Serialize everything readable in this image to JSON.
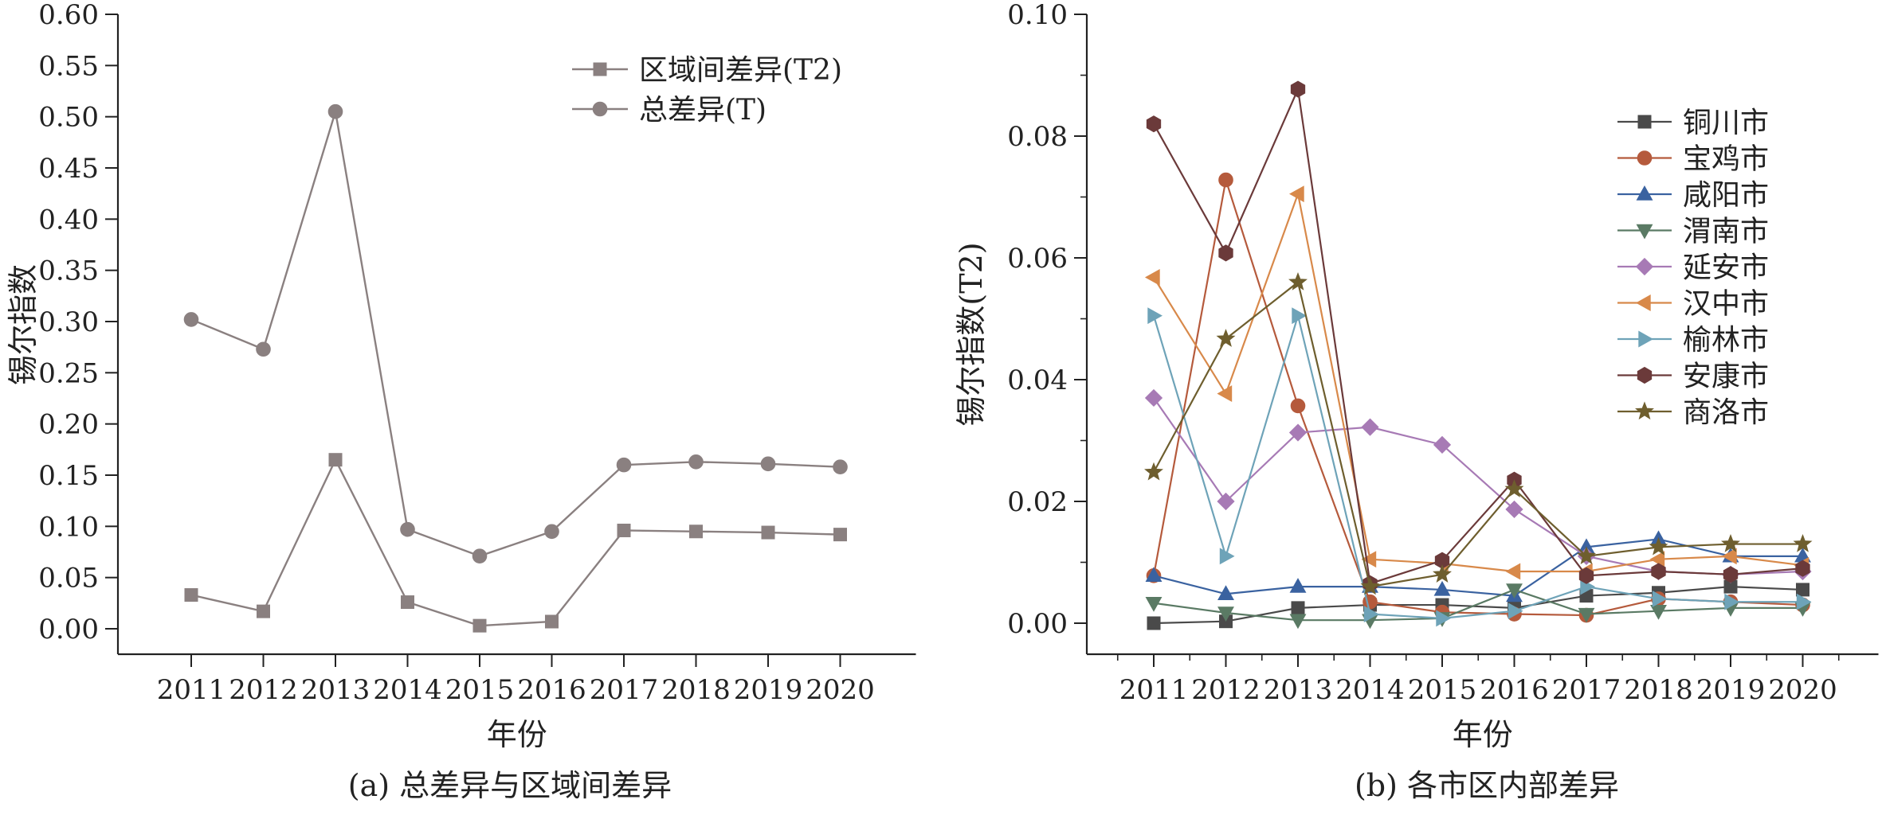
{
  "chart_data": [
    {
      "type": "line",
      "caption": "(a) 总差异与区域间差异",
      "xlabel": "年份",
      "ylabel": "锡尔指数",
      "categories": [
        "2011",
        "2012",
        "2013",
        "2014",
        "2015",
        "2016",
        "2017",
        "2018",
        "2019",
        "2020"
      ],
      "ylim": [
        0,
        0.6
      ],
      "yticks": [
        "0.00",
        "0.05",
        "0.10",
        "0.15",
        "0.20",
        "0.25",
        "0.30",
        "0.35",
        "0.40",
        "0.45",
        "0.50",
        "0.55",
        "0.60"
      ],
      "legend_position": "top-right",
      "series": [
        {
          "name": "区域间差异(T2)",
          "marker": "square",
          "color": "#8a8080",
          "values": [
            0.033,
            0.017,
            0.165,
            0.026,
            0.003,
            0.007,
            0.096,
            0.095,
            0.094,
            0.092
          ]
        },
        {
          "name": "总差异(T)",
          "marker": "circle",
          "color": "#8a8080",
          "values": [
            0.302,
            0.273,
            0.505,
            0.097,
            0.071,
            0.095,
            0.16,
            0.163,
            0.161,
            0.158
          ]
        }
      ]
    },
    {
      "type": "line",
      "caption": "(b) 各市区内部差异",
      "xlabel": "年份",
      "ylabel": "锡尔指数(T2)",
      "categories": [
        "2011",
        "2012",
        "2013",
        "2014",
        "2015",
        "2016",
        "2017",
        "2018",
        "2019",
        "2020"
      ],
      "ylim": [
        0,
        0.1
      ],
      "yticks": [
        "0.00",
        "0.02",
        "0.04",
        "0.06",
        "0.08",
        "0.10"
      ],
      "legend_position": "top-right",
      "series": [
        {
          "name": "铜川市",
          "marker": "square",
          "color": "#4a4a4a",
          "values": [
            0.0,
            0.0003,
            0.0025,
            0.003,
            0.003,
            0.0025,
            0.0045,
            0.005,
            0.006,
            0.0055
          ]
        },
        {
          "name": "宝鸡市",
          "marker": "circle",
          "color": "#b55a3c",
          "values": [
            0.0078,
            0.0728,
            0.0357,
            0.0035,
            0.0018,
            0.0015,
            0.0013,
            0.004,
            0.0035,
            0.003
          ]
        },
        {
          "name": "咸阳市",
          "marker": "triangle-up",
          "color": "#3a62a0",
          "values": [
            0.0078,
            0.0048,
            0.006,
            0.006,
            0.0055,
            0.0045,
            0.0125,
            0.0138,
            0.011,
            0.011
          ]
        },
        {
          "name": "渭南市",
          "marker": "triangle-down",
          "color": "#5a7a64",
          "values": [
            0.0033,
            0.0017,
            0.0005,
            0.0005,
            0.0008,
            0.0055,
            0.0015,
            0.002,
            0.0025,
            0.0025
          ]
        },
        {
          "name": "延安市",
          "marker": "diamond",
          "color": "#a77ab5",
          "values": [
            0.037,
            0.02,
            0.0313,
            0.0322,
            0.0293,
            0.0187,
            0.011,
            0.0085,
            0.008,
            0.0085
          ]
        },
        {
          "name": "汉中市",
          "marker": "triangle-left",
          "color": "#d8894a",
          "values": [
            0.0568,
            0.0377,
            0.0705,
            0.0105,
            0.0098,
            0.0085,
            0.0085,
            0.0105,
            0.011,
            0.0095
          ]
        },
        {
          "name": "榆林市",
          "marker": "triangle-right",
          "color": "#6ea3b8",
          "values": [
            0.0505,
            0.011,
            0.0505,
            0.0015,
            0.0008,
            0.002,
            0.006,
            0.004,
            0.0035,
            0.0035
          ]
        },
        {
          "name": "安康市",
          "marker": "hexagon",
          "color": "#6b3a3a",
          "values": [
            0.082,
            0.0608,
            0.0877,
            0.0065,
            0.0103,
            0.0235,
            0.0078,
            0.0085,
            0.008,
            0.009
          ]
        },
        {
          "name": "商洛市",
          "marker": "star",
          "color": "#6e5e2e",
          "values": [
            0.0248,
            0.0467,
            0.056,
            0.006,
            0.008,
            0.022,
            0.011,
            0.0125,
            0.013,
            0.013
          ]
        }
      ]
    }
  ]
}
